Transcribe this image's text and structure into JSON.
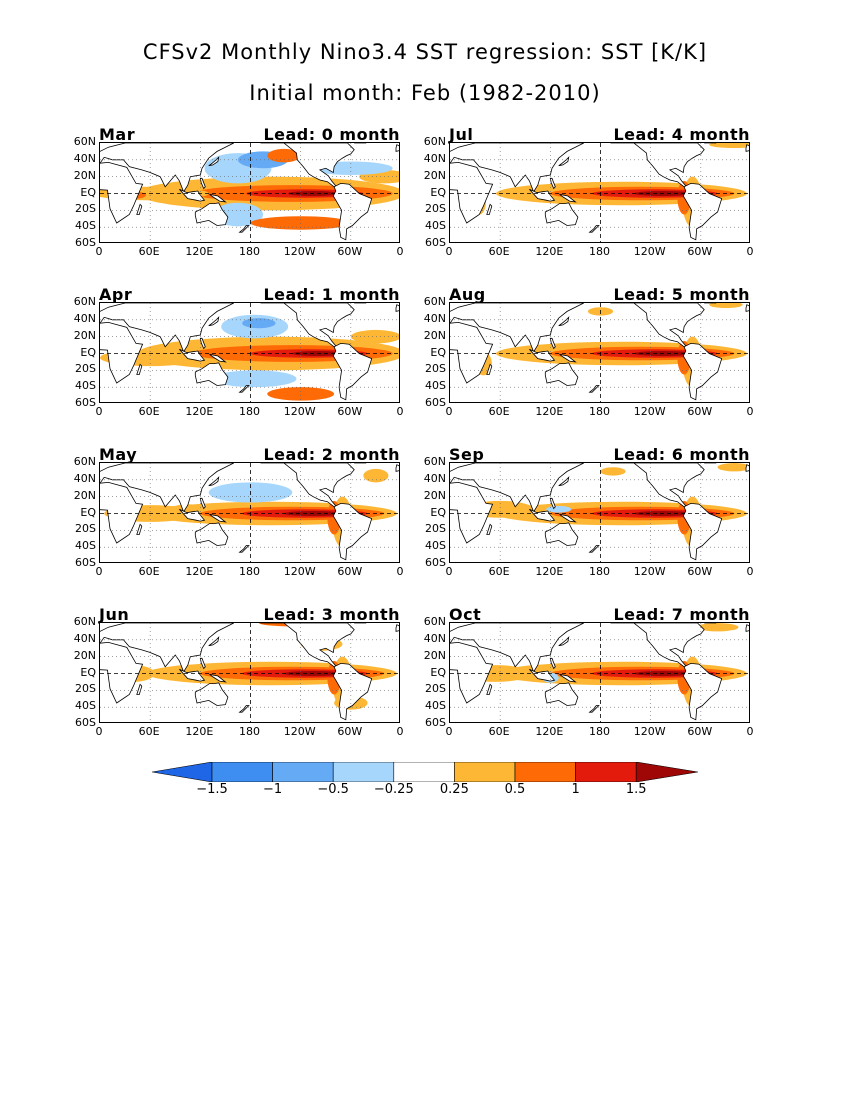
{
  "title": {
    "line1": "CFSv2 Monthly Nino3.4 SST regression: SST [K/K]",
    "line2": "Initial month: Feb (1982-2010)"
  },
  "axes": {
    "y_ticks": [
      "60N",
      "40N",
      "20N",
      "EQ",
      "20S",
      "40S",
      "60S"
    ],
    "x_ticks": [
      "0",
      "60E",
      "120E",
      "180",
      "120W",
      "60W",
      "0"
    ]
  },
  "colors": {
    "neg_1_5": "#1f66e6",
    "neg_1": "#3d8ef0",
    "neg_0_5": "#64aaf5",
    "neg_0_25": "#a6d6fb",
    "zero": "#ffffff",
    "pos_0_25": "#fdb734",
    "pos_0_5": "#fe6a05",
    "pos_1": "#e31b0c",
    "pos_1_5": "#9f0707"
  },
  "chart_data": {
    "type": "heatmap",
    "units": "K/K",
    "colorbar": {
      "labels": [
        "-1.5",
        "-1",
        "-0.5",
        "-0.25",
        "0.25",
        "0.5",
        "1",
        "1.5"
      ]
    },
    "panels": [
      {
        "month": "Mar",
        "lead": "Lead: 0 month"
      },
      {
        "month": "Jul",
        "lead": "Lead: 4 month"
      },
      {
        "month": "Apr",
        "lead": "Lead: 1 month"
      },
      {
        "month": "Aug",
        "lead": "Lead: 5 month"
      },
      {
        "month": "May",
        "lead": "Lead: 2 month"
      },
      {
        "month": "Sep",
        "lead": "Lead: 6 month"
      },
      {
        "month": "Jun",
        "lead": "Lead: 3 month"
      },
      {
        "month": "Oct",
        "lead": "Lead: 7 month"
      }
    ]
  }
}
